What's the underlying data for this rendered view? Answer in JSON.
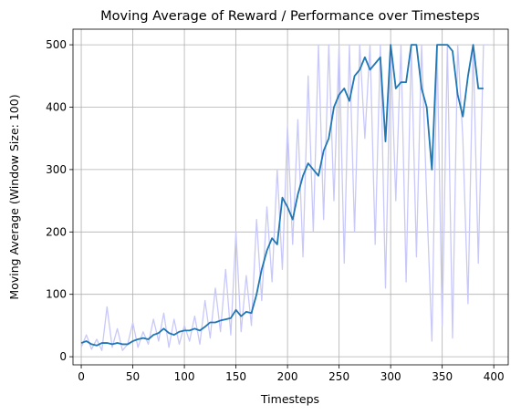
{
  "chart_data": {
    "type": "line",
    "title": "Moving Average of Reward / Performance over Timesteps",
    "xlabel": "Timesteps",
    "ylabel": "Moving Average (Window Size: 100)",
    "x": [
      0,
      5,
      10,
      15,
      20,
      25,
      30,
      35,
      40,
      45,
      50,
      55,
      60,
      65,
      70,
      75,
      80,
      85,
      90,
      95,
      100,
      105,
      110,
      115,
      120,
      125,
      130,
      135,
      140,
      145,
      150,
      155,
      160,
      165,
      170,
      175,
      180,
      185,
      190,
      195,
      200,
      205,
      210,
      215,
      220,
      225,
      230,
      235,
      240,
      245,
      250,
      255,
      260,
      265,
      270,
      275,
      280,
      285,
      290,
      295,
      300,
      305,
      310,
      315,
      320,
      325,
      330,
      335,
      340,
      345,
      350,
      355,
      360,
      365,
      370,
      375,
      380,
      385,
      390,
      395
    ],
    "series": [
      {
        "name": "Reward",
        "color": "#c8c8fb",
        "values": [
          15,
          35,
          12,
          28,
          10,
          80,
          15,
          45,
          10,
          20,
          55,
          15,
          40,
          20,
          60,
          25,
          70,
          15,
          60,
          20,
          50,
          25,
          65,
          20,
          90,
          30,
          110,
          40,
          140,
          35,
          200,
          40,
          130,
          50,
          220,
          90,
          240,
          120,
          300,
          140,
          370,
          180,
          380,
          160,
          450,
          200,
          500,
          220,
          500,
          250,
          500,
          150,
          500,
          200,
          500,
          350,
          500,
          180,
          500,
          110,
          500,
          250,
          500,
          120,
          500,
          160,
          500,
          250,
          25,
          500,
          50,
          500,
          30,
          500,
          350,
          85,
          500,
          150,
          500,
          500
        ]
      },
      {
        "name": "Moving Average",
        "color": "#1f77b4",
        "values": [
          22,
          25,
          20,
          18,
          22,
          22,
          20,
          22,
          20,
          20,
          25,
          28,
          30,
          28,
          35,
          38,
          45,
          38,
          35,
          40,
          42,
          42,
          45,
          42,
          48,
          55,
          55,
          58,
          60,
          62,
          75,
          65,
          72,
          70,
          100,
          140,
          170,
          190,
          180,
          255,
          240,
          220,
          260,
          290,
          310,
          300,
          290,
          330,
          350,
          400,
          420,
          430,
          410,
          450,
          460,
          480,
          460,
          470,
          480,
          345,
          500,
          430,
          440,
          440,
          500,
          500,
          430,
          400,
          300,
          500,
          500,
          500,
          490,
          420,
          385,
          450,
          500,
          430,
          430,
          null
        ]
      }
    ],
    "xlim": [
      -8,
      414
    ],
    "xticks": [
      0,
      50,
      100,
      150,
      200,
      250,
      300,
      350,
      400
    ],
    "ylim": [
      -13,
      525
    ],
    "yticks": [
      0,
      100,
      200,
      300,
      400,
      500
    ],
    "grid": true
  }
}
